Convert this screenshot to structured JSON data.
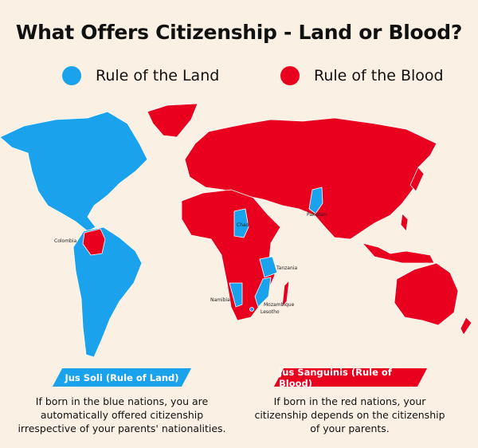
{
  "title": "What Offers Citizenship - Land or Blood?",
  "legend": [
    {
      "label": "Rule of the Land",
      "color": "#1aa3ec"
    },
    {
      "label": "Rule of the Blood",
      "color": "#e8001e"
    }
  ],
  "map_labels": {
    "colombia": "Colombia",
    "chad": "Chad",
    "pakistan": "Pakistan",
    "tanzania": "Tanzania",
    "namibia": "Namibia",
    "mozambique": "Mozambique",
    "lesotho": "Lesotho"
  },
  "panels": [
    {
      "banner": "Jus Soli (Rule of Land)",
      "color": "#1aa3ec",
      "lines": [
        "If born in the blue nations, you are",
        "automatically offered citizenship",
        "irrespective of your parents' nationalities."
      ]
    },
    {
      "banner": "Jus Sanguinis (Rule of Blood)",
      "color": "#e8001e",
      "lines": [
        "If born in the red nations, your",
        "citizenship depends on the citizenship",
        "of your parents."
      ]
    }
  ]
}
